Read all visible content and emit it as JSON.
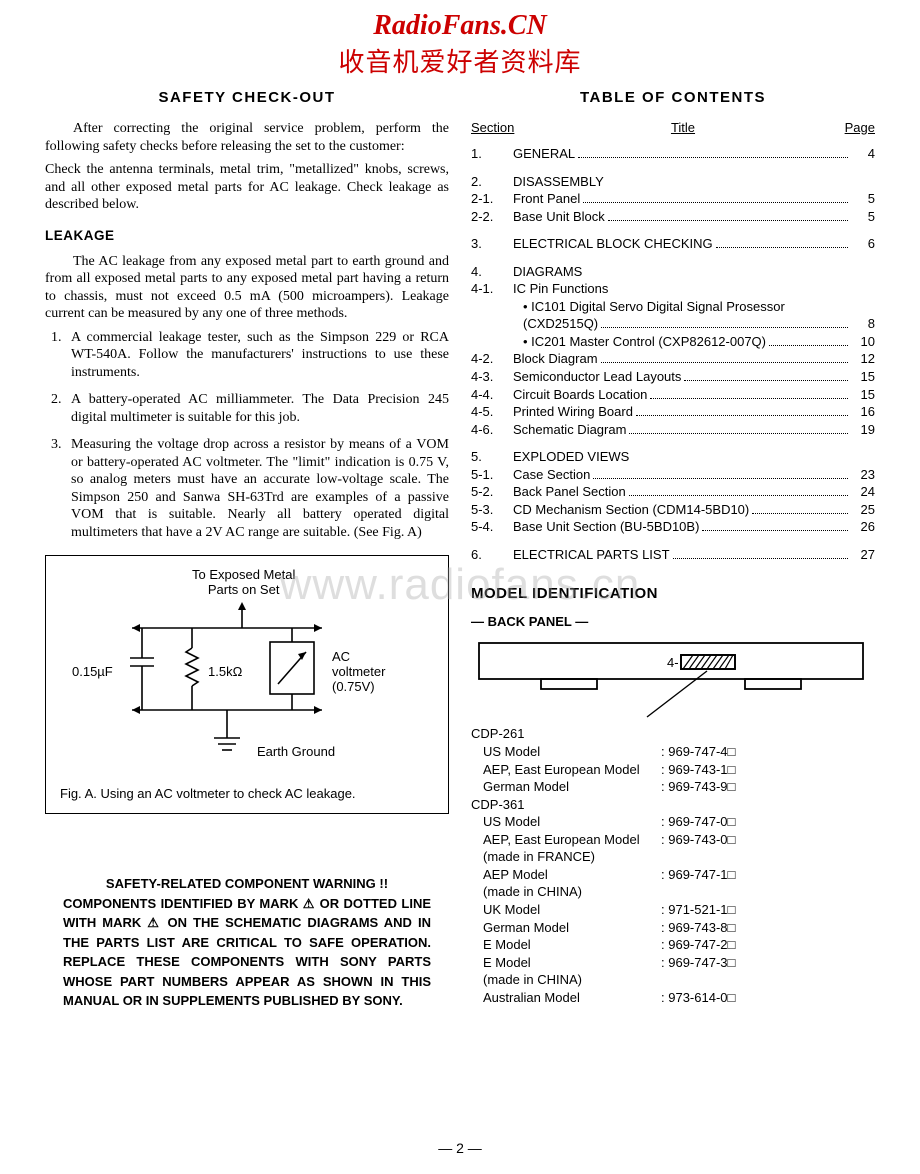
{
  "watermark": {
    "line1": "RadioFans.CN",
    "line2": "收音机爱好者资料库",
    "center": "www.radiofans.cn",
    "color": "#cc0000"
  },
  "left": {
    "title": "SAFETY  CHECK-OUT",
    "para1": "After correcting the original service problem, perform the following safety checks before releasing the set to the customer:",
    "para2": "Check the antenna terminals, metal trim, \"metallized\" knobs, screws, and all other exposed metal parts for AC leakage. Check leakage as described below.",
    "leakage_heading": "LEAKAGE",
    "leakage_para": "The AC leakage from any exposed metal part to earth ground and from all exposed metal parts to any exposed metal part having a return to chassis, must not exceed 0.5 mA (500 microampers). Leakage current can be measured by any one of three methods.",
    "methods": [
      "A commercial leakage tester, such as the Simpson 229 or RCA WT-540A. Follow the manufacturers' instructions to use these instruments.",
      "A battery-operated AC milliammeter. The Data Precision 245 digital multimeter is suitable for this job.",
      "Measuring the voltage drop across a resistor by means of a VOM or battery-operated AC voltmeter. The \"limit\" indication is 0.75 V, so analog meters must have an accurate low-voltage scale. The Simpson 250 and Sanwa SH-63Trd are examples of a passive VOM that is suitable. Nearly all battery operated digital multimeters that have a 2V AC range are suitable. (See Fig. A)"
    ],
    "fig": {
      "top_label": "To Exposed Metal\nParts on Set",
      "cap_label": "0.15µF",
      "res_label": "1.5kΩ",
      "meter_label": "AC\nvoltmeter\n(0.75V)",
      "ground_label": "Earth Ground",
      "caption": "Fig. A. Using an AC voltmeter to check AC leakage."
    },
    "warning": {
      "title": "SAFETY-RELATED COMPONENT WARNING !!",
      "body": "COMPONENTS IDENTIFIED BY MARK ⚠ OR DOTTED LINE WITH MARK ⚠ ON THE SCHEMATIC DIAGRAMS AND IN THE PARTS LIST ARE CRITICAL TO SAFE OPERATION. REPLACE THESE COMPONENTS WITH SONY PARTS WHOSE PART NUMBERS APPEAR AS SHOWN IN THIS MANUAL OR IN SUPPLEMENTS PUBLISHED BY SONY."
    }
  },
  "right": {
    "title": "TABLE  OF  CONTENTS",
    "headers": {
      "section": "Section",
      "title": "Title",
      "page": "Page"
    },
    "toc": [
      {
        "num": "1.",
        "title": "GENERAL",
        "page": "4",
        "dots": true
      },
      {
        "gap": true
      },
      {
        "num": "2.",
        "title": "DISASSEMBLY",
        "page": "",
        "dots": false
      },
      {
        "num": "2-1.",
        "title": "Front Panel",
        "page": "5",
        "dots": true
      },
      {
        "num": "2-2.",
        "title": "Base Unit Block",
        "page": "5",
        "dots": true
      },
      {
        "gap": true
      },
      {
        "num": "3.",
        "title": "ELECTRICAL BLOCK CHECKING",
        "page": "6",
        "dots": true
      },
      {
        "gap": true
      },
      {
        "num": "4.",
        "title": "DIAGRAMS",
        "page": "",
        "dots": false
      },
      {
        "num": "4-1.",
        "title": "IC Pin Functions",
        "page": "",
        "dots": false
      },
      {
        "num": "",
        "title": "• IC101 Digital Servo Digital Signal Prosessor",
        "page": "",
        "dots": false,
        "sub": true
      },
      {
        "num": "",
        "title": "   (CXD2515Q)",
        "page": "8",
        "dots": true,
        "sub": true
      },
      {
        "num": "",
        "title": "• IC201 Master Control (CXP82612-007Q)",
        "page": "10",
        "dots": true,
        "sub": true
      },
      {
        "num": "4-2.",
        "title": "Block Diagram",
        "page": "12",
        "dots": true
      },
      {
        "num": "4-3.",
        "title": "Semiconductor Lead Layouts",
        "page": "15",
        "dots": true
      },
      {
        "num": "4-4.",
        "title": "Circuit Boards Location",
        "page": "15",
        "dots": true
      },
      {
        "num": "4-5.",
        "title": "Printed Wiring Board",
        "page": "16",
        "dots": true
      },
      {
        "num": "4-6.",
        "title": "Schematic Diagram",
        "page": "19",
        "dots": true
      },
      {
        "gap": true
      },
      {
        "num": "5.",
        "title": "EXPLODED VIEWS",
        "page": "",
        "dots": false
      },
      {
        "num": "5-1.",
        "title": "Case Section",
        "page": "23",
        "dots": true
      },
      {
        "num": "5-2.",
        "title": "Back Panel Section",
        "page": "24",
        "dots": true
      },
      {
        "num": "5-3.",
        "title": "CD Mechanism Section (CDM14-5BD10)",
        "page": "25",
        "dots": true
      },
      {
        "num": "5-4.",
        "title": "Base Unit Section (BU-5BD10B)",
        "page": "26",
        "dots": true
      },
      {
        "gap": true
      },
      {
        "num": "6.",
        "title": "ELECTRICAL PARTS LIST",
        "page": "27",
        "dots": true
      }
    ],
    "model_id": {
      "title": "MODEL IDENTIFICATION",
      "back_panel": "— BACK PANEL —",
      "panel_label": "4-",
      "groups": [
        {
          "head": "CDP-261",
          "rows": [
            {
              "name": "US Model",
              "code": "969-747-4□"
            },
            {
              "name": "AEP, East European Model",
              "code": "969-743-1□"
            },
            {
              "name": "German Model",
              "code": "969-743-9□"
            }
          ]
        },
        {
          "head": "CDP-361",
          "rows": [
            {
              "name": "US Model",
              "code": "969-747-0□"
            },
            {
              "name": "AEP, East European Model",
              "code": "969-743-0□"
            },
            {
              "name": "(made in FRANCE)",
              "code": "",
              "nocode": true
            },
            {
              "name": "AEP Model",
              "code": "969-747-1□"
            },
            {
              "name": "(made in CHINA)",
              "code": "",
              "nocode": true
            },
            {
              "name": "UK Model",
              "code": "971-521-1□"
            },
            {
              "name": "German Model",
              "code": "969-743-8□"
            },
            {
              "name": "E Model",
              "code": "969-747-2□"
            },
            {
              "name": "E Model",
              "code": "969-747-3□"
            },
            {
              "name": "(made in CHINA)",
              "code": "",
              "nocode": true
            },
            {
              "name": "Australian Model",
              "code": "973-614-0□"
            }
          ]
        }
      ]
    }
  },
  "page_number": "— 2 —"
}
